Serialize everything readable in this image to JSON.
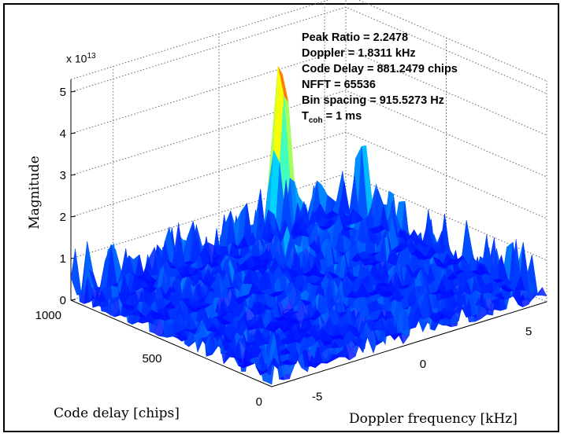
{
  "chart_data": {
    "type": "surface",
    "title": "",
    "zlabel": "Magnitude",
    "xlabel": "Code delay [chips]",
    "ylabel": "Doppler frequency [kHz]",
    "z_exponent_label": "x 10",
    "z_exponent_power": "13",
    "z_ticks": [
      "0",
      "1",
      "2",
      "3",
      "4",
      "5"
    ],
    "code_delay_ticks": [
      "0",
      "500",
      "1000"
    ],
    "doppler_ticks": [
      "-5",
      "0",
      "5"
    ],
    "zlim": [
      0,
      5.3
    ],
    "code_delay_range": [
      0,
      1000
    ],
    "doppler_range_khz": [
      -7,
      6
    ],
    "colormap": "jet",
    "peak": {
      "code_delay_chips": 881.2479,
      "doppler_khz": 1.8311,
      "magnitude": 5.6
    },
    "secondary_peak": {
      "code_delay_chips": 880,
      "doppler_khz": 5.6,
      "magnitude": 3.3
    },
    "noise_floor_magnitude": 1.0
  },
  "annotations": {
    "peak_ratio": "Peak Ratio = 2.2478",
    "doppler": "Doppler = 1.8311 kHz",
    "code_delay": "Code Delay = 881.2479 chips",
    "nfft": "NFFT = 65536",
    "bin_spacing": "Bin spacing = 915.5273 Hz",
    "tcoh_symbol": "T",
    "tcoh_subscript": "coh",
    "tcoh_value": " = 1 ms"
  }
}
